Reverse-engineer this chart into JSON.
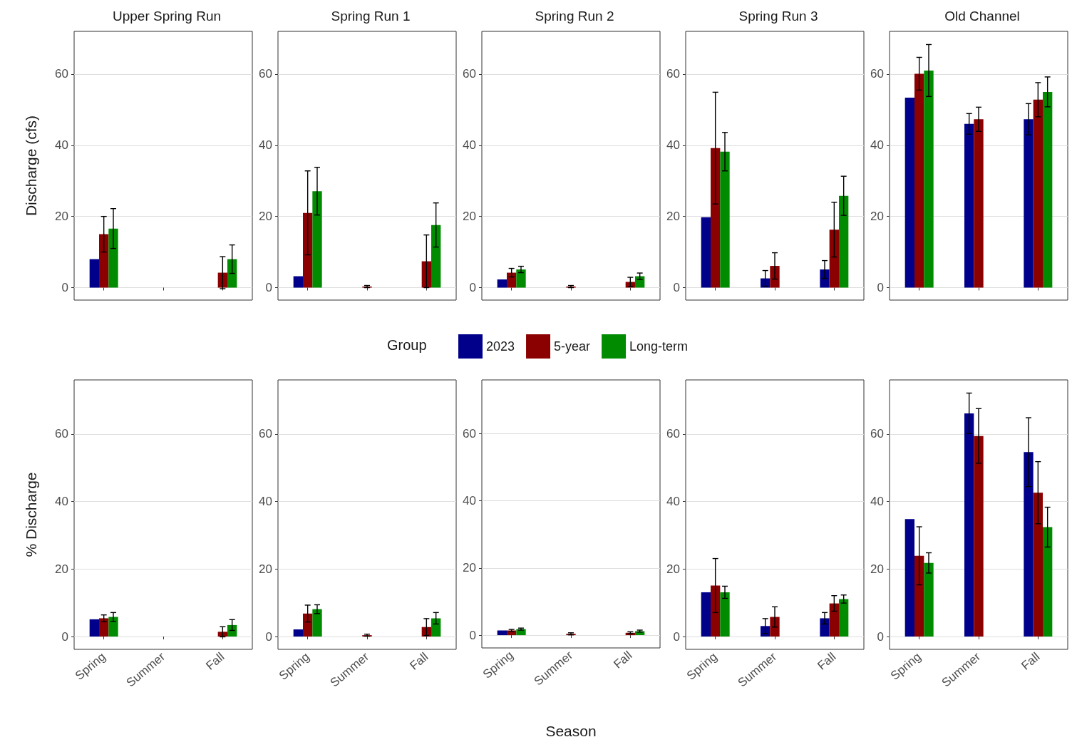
{
  "chart_data": [
    {
      "type": "bar",
      "title": "Upper Spring Run",
      "ylabel": "Discharge (cfs)",
      "categories": [
        null,
        null,
        null
      ],
      "series": [
        {
          "color": "#00008b",
          "values": [
            8.0,
            0,
            0
          ],
          "errors": [
            null,
            null,
            null
          ]
        },
        {
          "color": "#8b0000",
          "values": [
            15.0,
            0,
            4.2
          ],
          "errors": [
            5.0,
            null,
            4.5
          ]
        },
        {
          "color": "#008b00",
          "values": [
            16.6,
            null,
            8.0
          ],
          "errors": [
            5.6,
            null,
            4.0
          ]
        }
      ],
      "ylim": [
        -3.5,
        72
      ],
      "yticks": [
        0,
        20,
        40,
        60
      ],
      "grid": "y",
      "tick_labels": "y"
    },
    {
      "type": "bar",
      "title": "Spring Run 1",
      "categories": [
        null,
        null,
        null
      ],
      "series": [
        {
          "color": "#00008b",
          "values": [
            3.2,
            0,
            0
          ],
          "errors": [
            null,
            null,
            null
          ]
        },
        {
          "color": "#8b0000",
          "values": [
            21.0,
            0.3,
            7.4
          ],
          "errors": [
            11.8,
            0.3,
            7.4
          ]
        },
        {
          "color": "#008b00",
          "values": [
            27.1,
            null,
            17.6
          ],
          "errors": [
            6.7,
            null,
            6.2
          ]
        }
      ],
      "ylim": [
        -3.5,
        72
      ],
      "yticks": [
        0,
        20,
        40,
        60
      ],
      "grid": "y",
      "tick_labels": "y"
    },
    {
      "type": "bar",
      "title": "Spring Run 2",
      "legend": "bottom",
      "legend_title": "Group",
      "categories": [
        null,
        null,
        null
      ],
      "series": [
        {
          "name": "2023",
          "color": "#00008b",
          "values": [
            2.3,
            0,
            0
          ],
          "errors": [
            null,
            null,
            null
          ]
        },
        {
          "name": "5-year",
          "color": "#8b0000",
          "values": [
            4.2,
            0.3,
            1.6
          ],
          "errors": [
            1.2,
            0.3,
            1.3
          ]
        },
        {
          "name": "Long-term",
          "color": "#008b00",
          "values": [
            5.1,
            null,
            3.2
          ],
          "errors": [
            0.9,
            null,
            0.9
          ]
        }
      ],
      "ylim": [
        -3.5,
        72
      ],
      "yticks": [
        0,
        20,
        40,
        60
      ],
      "grid": "y",
      "tick_labels": "y"
    },
    {
      "type": "bar",
      "title": "Spring Run 3",
      "categories": [
        null,
        null,
        null
      ],
      "series": [
        {
          "color": "#00008b",
          "values": [
            19.8,
            2.6,
            5.1
          ],
          "errors": [
            null,
            2.2,
            2.5
          ]
        },
        {
          "color": "#8b0000",
          "values": [
            39.2,
            6.1,
            16.3
          ],
          "errors": [
            15.7,
            3.7,
            7.7
          ]
        },
        {
          "color": "#008b00",
          "values": [
            38.2,
            null,
            25.8
          ],
          "errors": [
            5.4,
            null,
            5.5
          ]
        }
      ],
      "ylim": [
        -3.5,
        72
      ],
      "yticks": [
        0,
        20,
        40,
        60
      ],
      "grid": "y",
      "tick_labels": "y"
    },
    {
      "type": "bar",
      "title": "Old Channel",
      "categories": [
        null,
        null,
        null
      ],
      "series": [
        {
          "color": "#00008b",
          "values": [
            53.4,
            46.0,
            47.3
          ],
          "errors": [
            null,
            2.9,
            4.4
          ]
        },
        {
          "color": "#8b0000",
          "values": [
            60.1,
            47.3,
            52.8
          ],
          "errors": [
            4.6,
            3.4,
            4.8
          ]
        },
        {
          "color": "#008b00",
          "values": [
            61.0,
            null,
            55.0
          ],
          "errors": [
            7.3,
            null,
            4.2
          ]
        }
      ],
      "ylim": [
        -3.5,
        72
      ],
      "yticks": [
        0,
        20,
        40,
        60
      ],
      "grid": "y",
      "tick_labels": "y"
    },
    {
      "type": "bar",
      "ylabel": "% Discharge",
      "categories": [
        "Spring",
        "Summer",
        "Fall"
      ],
      "series": [
        {
          "color": "#00008b",
          "values": [
            5.1,
            0,
            0
          ],
          "errors": [
            null,
            null,
            null
          ]
        },
        {
          "color": "#8b0000",
          "values": [
            5.4,
            0,
            1.4
          ],
          "errors": [
            1.0,
            null,
            1.5
          ]
        },
        {
          "color": "#008b00",
          "values": [
            5.8,
            null,
            3.4
          ],
          "errors": [
            1.3,
            null,
            1.6
          ]
        }
      ],
      "ylim": [
        -3.8,
        76
      ],
      "yticks": [
        0,
        20,
        40,
        60
      ],
      "grid": "y"
    },
    {
      "type": "bar",
      "categories": [
        "Spring",
        "Summer",
        "Fall"
      ],
      "series": [
        {
          "color": "#00008b",
          "values": [
            2.1,
            0,
            0
          ],
          "errors": [
            null,
            null,
            null
          ]
        },
        {
          "color": "#8b0000",
          "values": [
            6.8,
            0.4,
            2.8
          ],
          "errors": [
            2.5,
            0.3,
            2.5
          ]
        },
        {
          "color": "#008b00",
          "values": [
            8.1,
            null,
            5.4
          ],
          "errors": [
            1.3,
            null,
            1.7
          ]
        }
      ],
      "ylim": [
        -3.8,
        76
      ],
      "yticks": [
        0,
        20,
        40,
        60
      ],
      "grid": "y"
    },
    {
      "type": "bar",
      "xlabel": "Season",
      "categories": [
        "Spring",
        "Summer",
        "Fall"
      ],
      "series": [
        {
          "color": "#00008b",
          "values": [
            1.4,
            0,
            0
          ],
          "errors": [
            null,
            null,
            null
          ]
        },
        {
          "color": "#8b0000",
          "values": [
            1.4,
            0.4,
            0.7
          ],
          "errors": [
            0.3,
            0.3,
            0.3
          ]
        },
        {
          "color": "#008b00",
          "values": [
            1.8,
            null,
            1.2
          ],
          "errors": [
            0.3,
            null,
            0.3
          ]
        }
      ],
      "ylim": [
        -3.8,
        76
      ],
      "yticks": [
        0,
        20,
        40,
        60
      ],
      "grid": "y"
    },
    {
      "type": "bar",
      "categories": [
        "Spring",
        "Summer",
        "Fall"
      ],
      "series": [
        {
          "color": "#00008b",
          "values": [
            13.1,
            3.1,
            5.4
          ],
          "errors": [
            null,
            2.2,
            1.7
          ]
        },
        {
          "color": "#8b0000",
          "values": [
            15.1,
            5.8,
            9.8
          ],
          "errors": [
            8.0,
            3.0,
            2.3
          ]
        },
        {
          "color": "#008b00",
          "values": [
            13.1,
            null,
            11.1
          ],
          "errors": [
            1.8,
            null,
            1.2
          ]
        }
      ],
      "ylim": [
        -3.8,
        76
      ],
      "yticks": [
        0,
        20,
        40,
        60
      ],
      "grid": "y"
    },
    {
      "type": "bar",
      "categories": [
        "Spring",
        "Summer",
        "Fall"
      ],
      "series": [
        {
          "color": "#00008b",
          "values": [
            34.8,
            66.1,
            54.6
          ],
          "errors": [
            null,
            6.0,
            10.2
          ]
        },
        {
          "color": "#8b0000",
          "values": [
            23.9,
            59.4,
            42.6
          ],
          "errors": [
            8.6,
            8.1,
            9.2
          ]
        },
        {
          "color": "#008b00",
          "values": [
            21.8,
            null,
            32.4
          ],
          "errors": [
            3.0,
            null,
            5.9
          ]
        }
      ],
      "ylim": [
        -3.8,
        76
      ],
      "yticks": [
        0,
        20,
        40,
        60
      ],
      "grid": "y"
    }
  ]
}
